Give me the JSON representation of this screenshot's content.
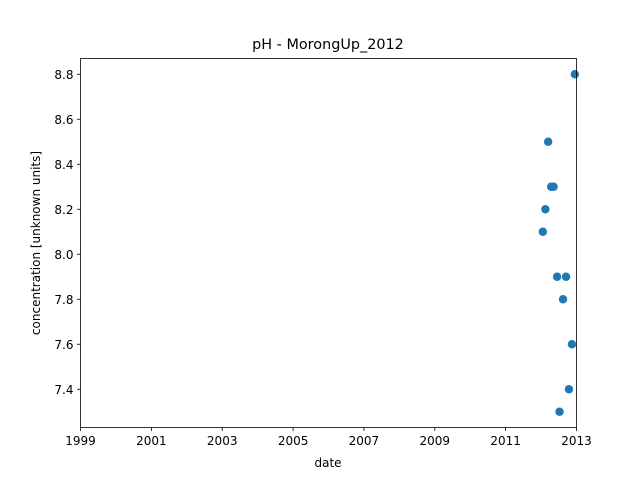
{
  "chart_data": {
    "type": "scatter",
    "title": "pH - MorongUp_2012",
    "xlabel": "date",
    "ylabel": "concentration [unknown units]",
    "x_axis_type": "date",
    "xlim": [
      "1999-01-01",
      "2013-01-01"
    ],
    "ylim": [
      7.23,
      8.87
    ],
    "x_ticks": [
      "1999",
      "2001",
      "2003",
      "2005",
      "2007",
      "2009",
      "2011",
      "2013"
    ],
    "y_ticks": [
      "7.4",
      "7.6",
      "7.8",
      "8.0",
      "8.2",
      "8.4",
      "8.6",
      "8.8"
    ],
    "grid": false,
    "marker_color": "#1f77b4",
    "points": [
      {
        "x": "2012-01-20",
        "y": 8.1
      },
      {
        "x": "2012-02-15",
        "y": 8.2
      },
      {
        "x": "2012-03-15",
        "y": 8.5
      },
      {
        "x": "2012-04-15",
        "y": 8.3
      },
      {
        "x": "2012-05-10",
        "y": 8.3
      },
      {
        "x": "2012-06-15",
        "y": 7.9
      },
      {
        "x": "2012-07-10",
        "y": 7.3
      },
      {
        "x": "2012-08-15",
        "y": 7.8
      },
      {
        "x": "2012-09-15",
        "y": 7.9
      },
      {
        "x": "2012-10-15",
        "y": 7.4
      },
      {
        "x": "2012-11-15",
        "y": 7.6
      },
      {
        "x": "2012-12-15",
        "y": 8.8
      }
    ]
  }
}
